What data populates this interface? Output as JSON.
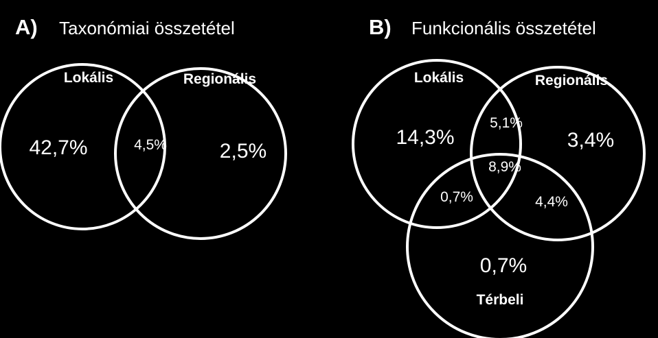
{
  "colors": {
    "background": "#000000",
    "stroke": "#ffffff",
    "text": "#ffffff"
  },
  "panel_a": {
    "letter": "A)",
    "title": "Taxonómiai összetétel",
    "sets": {
      "local": "Lokális",
      "regional": "Regionális"
    },
    "values": {
      "local_only": "42,7%",
      "local_regional": "4,5%",
      "regional_only": "2,5%"
    }
  },
  "panel_b": {
    "letter": "B)",
    "title": "Funkcionális összetétel",
    "sets": {
      "local": "Lokális",
      "regional": "Regionális",
      "spatial": "Térbeli"
    },
    "values": {
      "local_only": "14,3%",
      "local_regional": "5,1%",
      "regional_only": "3,4%",
      "all_three": "8,9%",
      "local_spatial": "0,7%",
      "regional_spatial": "4,4%",
      "spatial_only": "0,7%"
    }
  }
}
